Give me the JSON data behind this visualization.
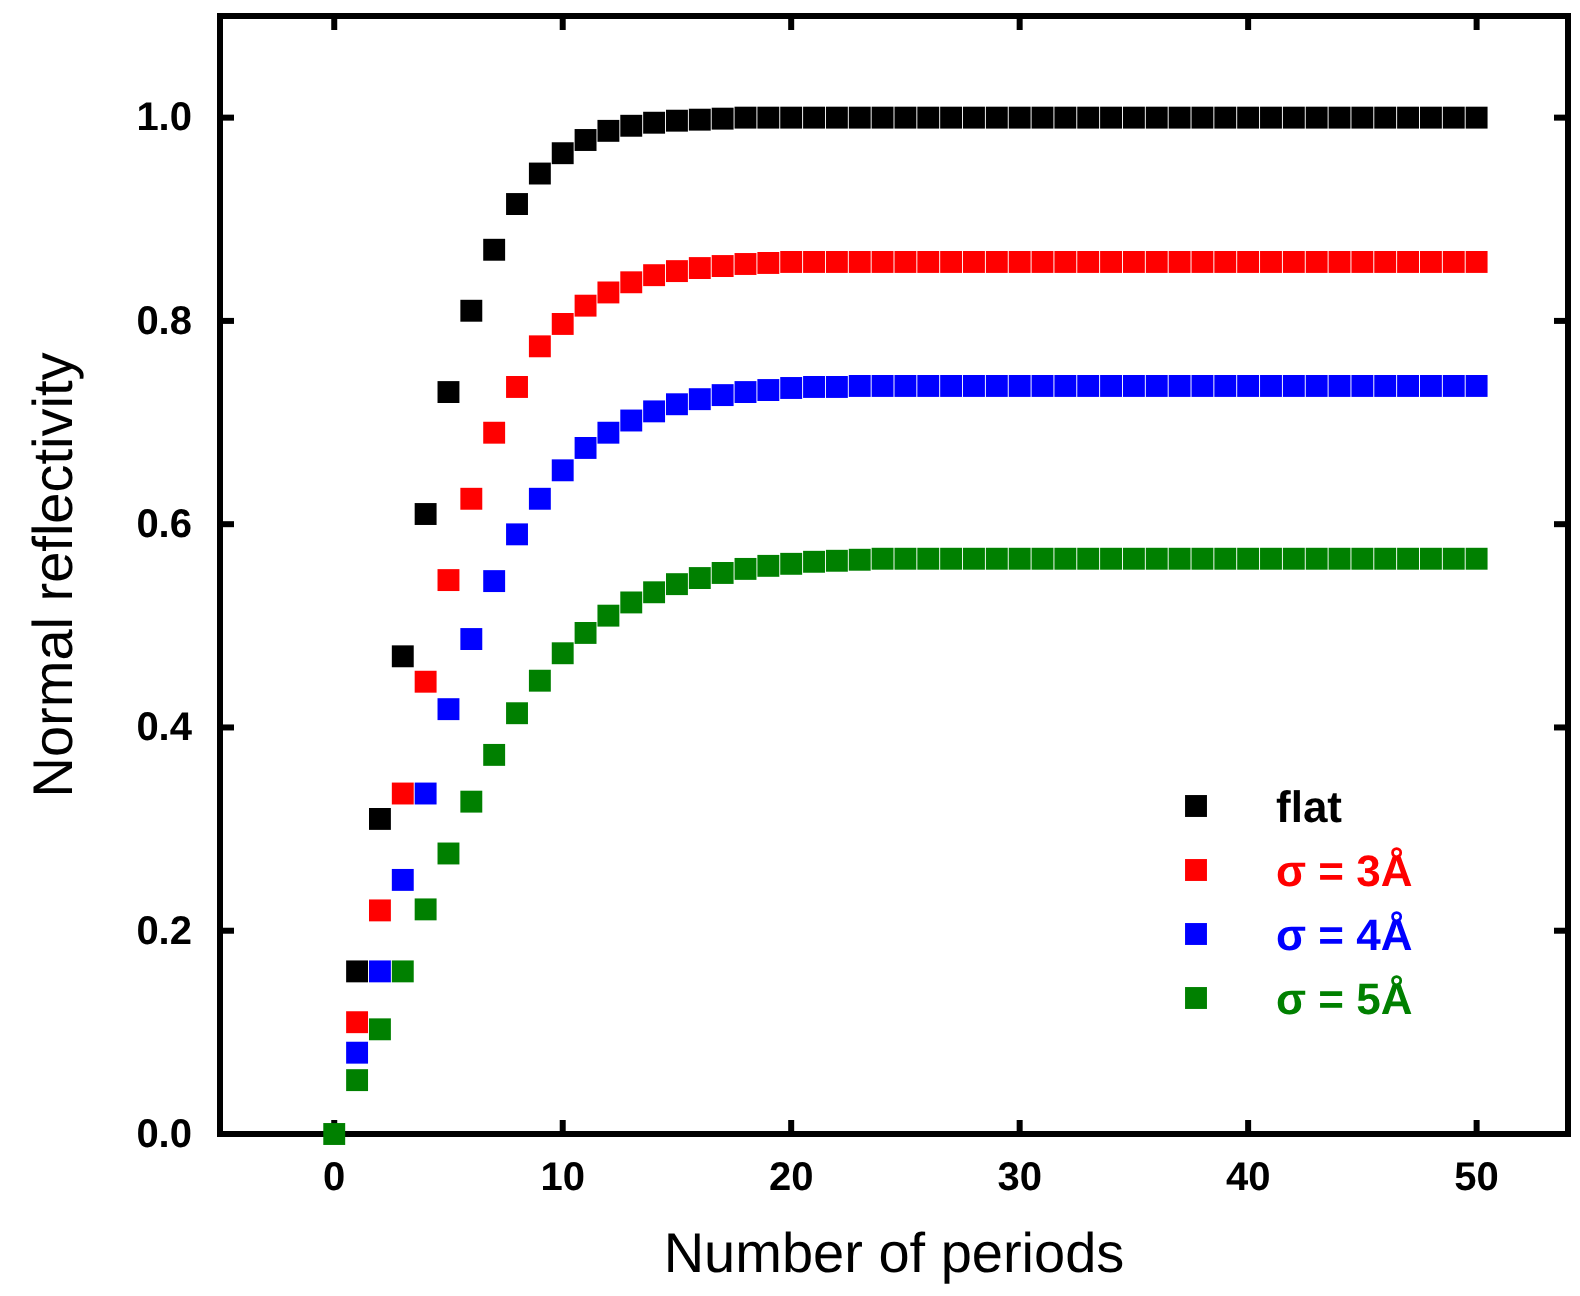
{
  "chart_data": {
    "type": "scatter",
    "xlabel": "Number of periods",
    "ylabel": "Normal reflectivity",
    "x": [
      0,
      1,
      2,
      3,
      4,
      5,
      6,
      7,
      8,
      9,
      10,
      11,
      12,
      13,
      14,
      15,
      16,
      17,
      18,
      19,
      20,
      21,
      22,
      23,
      24,
      25,
      26,
      27,
      28,
      29,
      30,
      31,
      32,
      33,
      34,
      35,
      36,
      37,
      38,
      39,
      40,
      41,
      42,
      43,
      44,
      45,
      46,
      47,
      48,
      49,
      50
    ],
    "series": [
      {
        "name": "flat",
        "color": "#000000",
        "values": [
          null,
          0.16,
          0.31,
          0.47,
          0.61,
          0.73,
          0.81,
          0.87,
          0.915,
          0.945,
          0.965,
          0.978,
          0.987,
          0.992,
          0.995,
          0.997,
          0.998,
          0.999,
          1,
          1,
          1,
          1,
          1,
          1,
          1,
          1,
          1,
          1,
          1,
          1,
          1,
          1,
          1,
          1,
          1,
          1,
          1,
          1,
          1,
          1,
          1,
          1,
          1,
          1,
          1,
          1,
          1,
          1,
          1,
          1,
          1
        ]
      },
      {
        "name": "σ = 3Å",
        "color": "#ff0000",
        "values": [
          null,
          0.11,
          0.22,
          0.335,
          0.445,
          0.545,
          0.625,
          0.69,
          0.735,
          0.775,
          0.797,
          0.815,
          0.828,
          0.838,
          0.845,
          0.849,
          0.852,
          0.854,
          0.856,
          0.857,
          0.858,
          0.858,
          0.858,
          0.858,
          0.858,
          0.858,
          0.858,
          0.858,
          0.858,
          0.858,
          0.858,
          0.858,
          0.858,
          0.858,
          0.858,
          0.858,
          0.858,
          0.858,
          0.858,
          0.858,
          0.858,
          0.858,
          0.858,
          0.858,
          0.858,
          0.858,
          0.858,
          0.858,
          0.858,
          0.858,
          0.858
        ]
      },
      {
        "name": "σ = 4Å",
        "color": "#0000ff",
        "values": [
          null,
          0.08,
          0.16,
          0.25,
          0.335,
          0.418,
          0.487,
          0.544,
          0.59,
          0.625,
          0.653,
          0.675,
          0.69,
          0.702,
          0.711,
          0.718,
          0.723,
          0.727,
          0.73,
          0.732,
          0.734,
          0.735,
          0.735,
          0.736,
          0.736,
          0.736,
          0.736,
          0.736,
          0.736,
          0.736,
          0.736,
          0.736,
          0.736,
          0.736,
          0.736,
          0.736,
          0.736,
          0.736,
          0.736,
          0.736,
          0.736,
          0.736,
          0.736,
          0.736,
          0.736,
          0.736,
          0.736,
          0.736,
          0.736,
          0.736,
          0.736
        ]
      },
      {
        "name": "σ = 5Å",
        "color": "#008000",
        "values": [
          0,
          0.053,
          0.103,
          0.16,
          0.221,
          0.276,
          0.327,
          0.373,
          0.414,
          0.446,
          0.473,
          0.493,
          0.51,
          0.523,
          0.533,
          0.541,
          0.547,
          0.552,
          0.556,
          0.559,
          0.561,
          0.563,
          0.564,
          0.565,
          0.566,
          0.566,
          0.566,
          0.566,
          0.566,
          0.566,
          0.566,
          0.566,
          0.566,
          0.566,
          0.566,
          0.566,
          0.566,
          0.566,
          0.566,
          0.566,
          0.566,
          0.566,
          0.566,
          0.566,
          0.566,
          0.566,
          0.566,
          0.566,
          0.566,
          0.566,
          0.566
        ]
      }
    ],
    "xlim": [
      -5,
      54
    ],
    "xticks": [
      0,
      10,
      20,
      30,
      40,
      50
    ],
    "ylim": [
      0,
      1.1
    ],
    "yticks": [
      {
        "value": 0,
        "label": "0.0"
      },
      0.2,
      0.4,
      0.6,
      0.8,
      {
        "value": 1,
        "label": "1.0"
      }
    ],
    "marker": "square",
    "legend": "bottom right",
    "grid": false
  }
}
